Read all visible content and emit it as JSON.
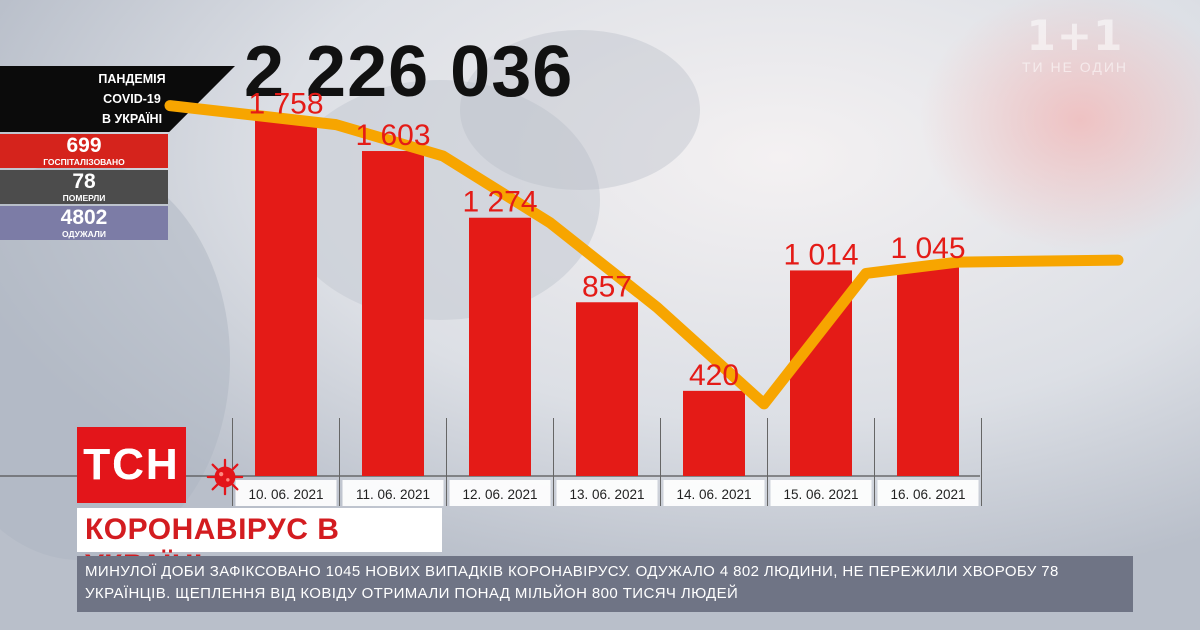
{
  "logo": {
    "mark": "1+1",
    "tagline": "ТИ НЕ ОДИН"
  },
  "total_cases": "2 226 036",
  "stats": {
    "header": [
      "ПАНДЕМІЯ",
      "COVID-19",
      "В УКРАЇНІ"
    ],
    "hospitalized": {
      "value": "699",
      "label": "ГОСПІТАЛІЗОВАНО"
    },
    "died": {
      "value": "78",
      "label": "ПОМЕРЛИ"
    },
    "recovered": {
      "value": "4802",
      "label": "ОДУЖАЛИ"
    }
  },
  "chart_data": {
    "type": "bar",
    "categories": [
      "10. 06. 2021",
      "11. 06. 2021",
      "12. 06. 2021",
      "13. 06. 2021",
      "14. 06. 2021",
      "15. 06. 2021",
      "16. 06. 2021"
    ],
    "values": [
      1758,
      1603,
      1274,
      857,
      420,
      1014,
      1045
    ],
    "value_labels": [
      "1 758",
      "1 603",
      "1 274",
      "857",
      "420",
      "1 014",
      "1 045"
    ],
    "bar_color": "#e41b17",
    "label_color": "#e41b17",
    "trend_color": "#f7a500",
    "ylim": [
      0,
      2200
    ],
    "xlabel": "",
    "ylabel": ""
  },
  "brand": {
    "name": "ТСН",
    "color": "#e3151a"
  },
  "headline": "КОРОНАВІРУС В УКРАЇНІ",
  "ticker": "МИНУЛОЇ ДОБИ ЗАФІКСОВАНО 1045 НОВИХ ВИПАДКІВ КОРОНАВІРУСУ. ОДУЖАЛО 4 802 ЛЮДИНИ, НЕ ПЕРЕЖИЛИ ХВОРОБУ 78 УКРАЇНЦІВ. ЩЕПЛЕННЯ ВІД КОВІДУ ОТРИМАЛИ ПОНАД МІЛЬЙОН 800 ТИСЯЧ ЛЮДЕЙ"
}
